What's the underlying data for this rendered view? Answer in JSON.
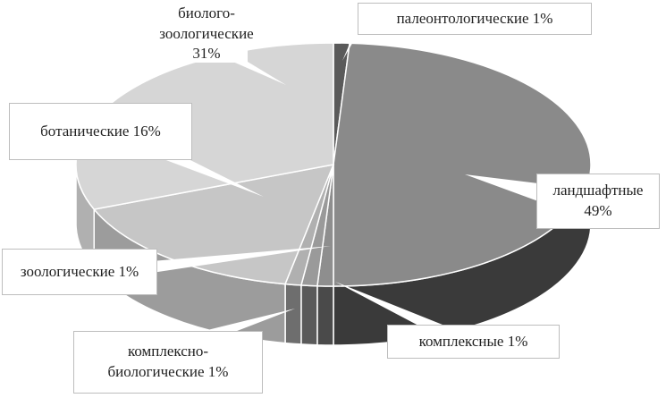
{
  "chart_data": {
    "type": "pie",
    "style": "3d",
    "start_angle": "12 o'clock",
    "direction": "clockwise",
    "slices": [
      {
        "label": "палеонтологические 1%",
        "name": "палеонтологические",
        "value": 1,
        "color": "#5a5a5a",
        "side_color": "#3c3c3c"
      },
      {
        "label": "ландшафтные 49%",
        "name": "ландшафтные",
        "value": 49,
        "color": "#8a8a8a",
        "side_color": "#3a3a3a"
      },
      {
        "label": "комплексные 1%",
        "name": "комплексные",
        "value": 1,
        "color": "#8e8e8e",
        "side_color": "#4a4a4a"
      },
      {
        "label": "комплексно-биологические 1%",
        "name": "комплексно-биологические",
        "value": 1,
        "color": "#9a9a9a",
        "side_color": "#5a5a5a"
      },
      {
        "label": "зоологические 1%",
        "name": "зоологические",
        "value": 1,
        "color": "#b0b0b0",
        "side_color": "#6e6e6e"
      },
      {
        "label": "ботанические 16%",
        "name": "ботанические",
        "value": 16,
        "color": "#c6c6c6",
        "side_color": "#9c9c9c"
      },
      {
        "label": "биолого-зоологические 31%",
        "name": "биолого-зоологические",
        "value": 31,
        "color": "#d6d6d6",
        "side_color": "#b0b0b0"
      }
    ],
    "labels_display": [
      "биолого-\nзоологические 31%",
      "палеонтологические 1%",
      "ботанические 16%",
      "ландшафтные\n49%",
      "зоологические 1%",
      "комплексно-\nбиологические 1%",
      "комплексные 1%"
    ]
  }
}
